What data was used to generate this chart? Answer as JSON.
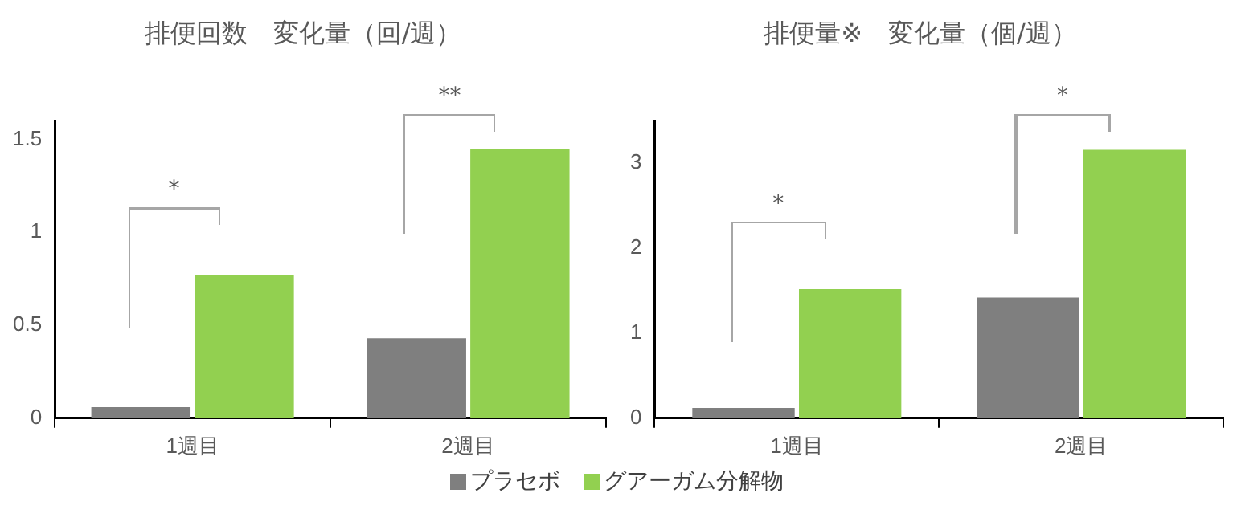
{
  "chart_data": [
    {
      "type": "bar",
      "title": "排便回数　変化量（回/週）",
      "categories": [
        "1週目",
        "2週目"
      ],
      "ylim": [
        0,
        1.6
      ],
      "yticks": [
        0,
        0.5,
        1,
        1.5
      ],
      "legend": "bottom",
      "series": [
        {
          "name": "プラセボ",
          "color": "#7f7f7f",
          "values": [
            0.06,
            0.43
          ]
        },
        {
          "name": "グアーガム分解物",
          "color": "#92d050",
          "values": [
            0.77,
            1.45
          ]
        }
      ],
      "annotations": [
        "*",
        "**"
      ]
    },
    {
      "type": "bar",
      "title": "排便量※　変化量（個/週）",
      "categories": [
        "1週目",
        "2週目"
      ],
      "ylim": [
        0,
        3.5
      ],
      "yticks": [
        0,
        1,
        2,
        3
      ],
      "legend": "bottom",
      "series": [
        {
          "name": "プラセボ",
          "color": "#7f7f7f",
          "values": [
            0.12,
            1.42
          ]
        },
        {
          "name": "グアーガム分解物",
          "color": "#92d050",
          "values": [
            1.52,
            3.16
          ]
        }
      ],
      "annotations": [
        "*",
        "*"
      ]
    }
  ]
}
